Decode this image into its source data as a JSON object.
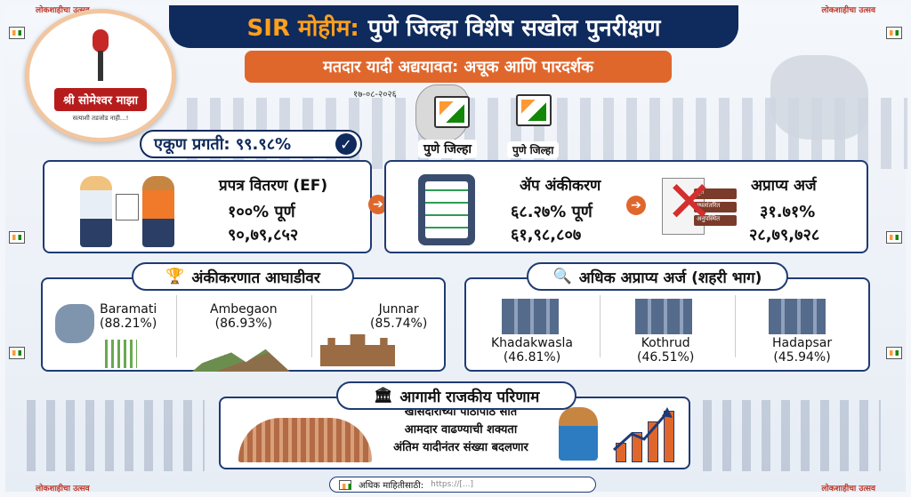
{
  "border": {
    "corner_text_tl": "लोकशाहीचा उत्सव",
    "corner_text_tr": "लोकशाहीचा उत्सव",
    "corner_text_bl": "लोकशाहीचा उत्सव",
    "corner_text_br": "लोकशाहीचा उत्सव"
  },
  "logo": {
    "band_text": "श्री सोमेश्वर माझा",
    "tagline": "सत्याशी तडजोड नाही...!"
  },
  "header": {
    "title_prefix": "SIR मोहीम:",
    "title_main": "पुणे जिल्हा विशेष सखोल पुनरीक्षण",
    "subtitle": "मतदार यादी अद्ययावत: अचूक आणि पारदर्शक",
    "date": "१७-०८-२०२६"
  },
  "maps": {
    "left_label": "पुणे जिल्हा",
    "right_label": "पुणे जिल्हा"
  },
  "progress": {
    "label": "एकूण प्रगती: ९९.९८%",
    "value_percent": 99.98
  },
  "cards": {
    "ef": {
      "title": "प्रपत्र वितरण (EF)",
      "line1": "१००% पूर्ण",
      "line2": "९०,७९,८५२"
    },
    "app": {
      "title": "ॲप अंकीकरण",
      "line1": "६८.२७% पूर्ण",
      "line2": "६१,९८,८०७"
    },
    "unreachable": {
      "title": "अप्राप्य अर्ज",
      "line1": "३१.७१%",
      "line2": "२८,७९,७२८"
    }
  },
  "leading": {
    "header": "अंकीकरणात आघाडीवर",
    "items": [
      {
        "name": "Baramati",
        "pct": "(88.21%)",
        "value": 88.21
      },
      {
        "name": "Ambegaon",
        "pct": "(86.93%)",
        "value": 86.93
      },
      {
        "name": "Junnar",
        "pct": "(85.74%)",
        "value": 85.74
      }
    ]
  },
  "urban": {
    "header": "अधिक अप्राप्य अर्ज (शहरी भाग)",
    "items": [
      {
        "name": "Khadakwasla",
        "pct": "(46.81%)",
        "value": 46.81
      },
      {
        "name": "Kothrud",
        "pct": "(46.51%)",
        "value": 46.51
      },
      {
        "name": "Hadapsar",
        "pct": "(45.94%)",
        "value": 45.94
      }
    ]
  },
  "political": {
    "header": "आगामी राजकीय परिणाम",
    "line1": "खासदारांच्या पाठोपाठ सात",
    "line2": "आमदार वाढण्याची शक्यता",
    "line3": "अंतिम यादीनंतर संख्या बदलणार"
  },
  "footer": {
    "label": "अधिक माहितीसाठी:",
    "url": "https://[...]"
  },
  "icons": {
    "check": "✓",
    "arrow": "➔",
    "trophy": "🏆",
    "magnifier": "🔍",
    "institution": "🏛"
  },
  "colors": {
    "navy": "#0f2a5c",
    "orange": "#e0672c",
    "accent": "#ff9f1c"
  }
}
